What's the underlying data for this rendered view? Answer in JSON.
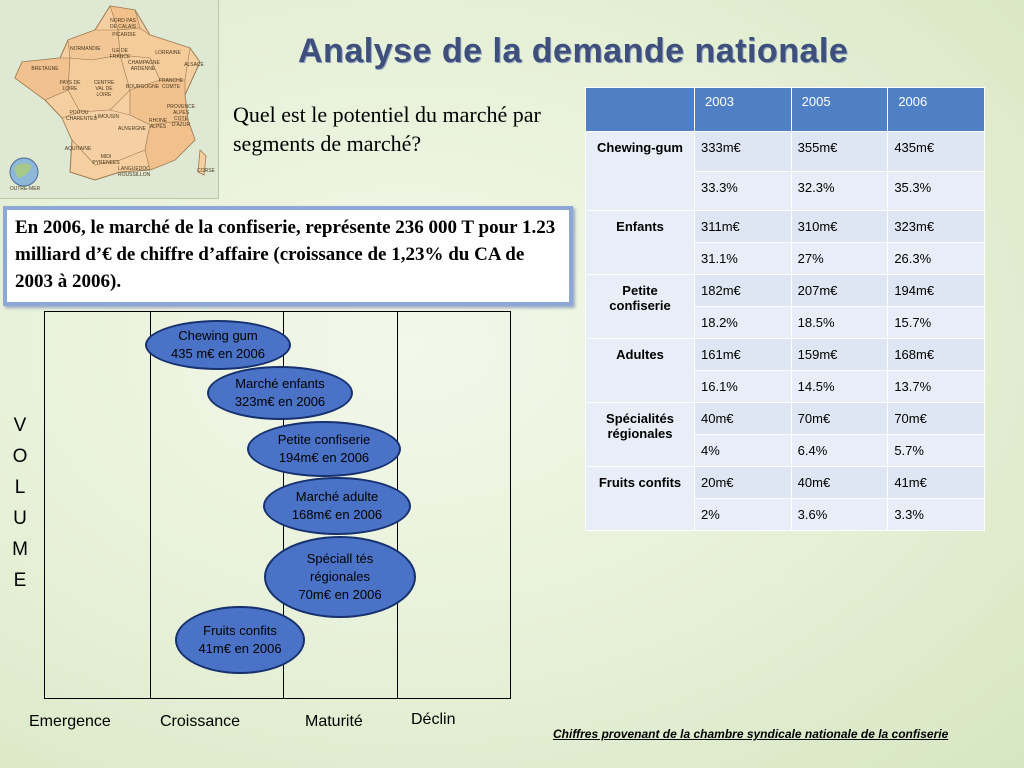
{
  "title": "Analyse de la demande nationale",
  "question": "Quel est le potentiel du marché par segments de marché?",
  "info_box": "En 2006, le marché de la confiserie, représente 236 000 T pour  1.23 milliard d’€ de chiffre d’affaire (croissance de 1,23% du CA de 2003 à 2006).",
  "map": {
    "regions": [
      "NORD PAS DE CALAIS",
      "PICARDIE",
      "NORMANDIE",
      "ILE DE FRANCE",
      "LORRAINE",
      "BRETAGNE",
      "CHAMPAGNE ARDENNE",
      "ALSACE",
      "PAYS DE LOIRE",
      "CENTRE VAL DE LOIRE",
      "BOURGOGNE",
      "FRANCHE COMTE",
      "POITOU CHARENTES",
      "LIMOUSIN",
      "AUVERGNE",
      "RHONE ALPES",
      "AQUITAINE",
      "MIDI PYRENEES",
      "LANGUEDOC ROUSSILLON",
      "PROVENCE ALPES COTE D'AZUR",
      "CORSE",
      "OUTRE-MER"
    ]
  },
  "volume_letters": [
    "V",
    "O",
    "L",
    "U",
    "M",
    "E"
  ],
  "phases": [
    "Emergence",
    "Croissance",
    "Maturité",
    "Déclin"
  ],
  "bubbles": [
    {
      "text": "Chewing gum\n435 m€ en 2006"
    },
    {
      "text": "Marché enfants\n323m€ en 2006"
    },
    {
      "text": "Petite confiserie\n194m€ en 2006"
    },
    {
      "text": "Marché adulte\n168m€ en 2006"
    },
    {
      "text": "Spéciall tés\nrégionales\n70m€ en 2006"
    },
    {
      "text": "Fruits confits\n41m€ en 2006"
    }
  ],
  "table": {
    "headers": [
      "",
      "2003",
      "2005",
      "2006"
    ],
    "rows": [
      {
        "category": "Chewing-gum",
        "values": [
          "333m€",
          "355m€",
          "435m€"
        ],
        "shares": [
          "33.3%",
          "32.3%",
          "35.3%"
        ]
      },
      {
        "category": "Enfants",
        "values": [
          "311m€",
          "310m€",
          "323m€"
        ],
        "shares": [
          "31.1%",
          "27%",
          "26.3%"
        ]
      },
      {
        "category": "Petite confiserie",
        "values": [
          "182m€",
          "207m€",
          "194m€"
        ],
        "shares": [
          "18.2%",
          "18.5%",
          "15.7%"
        ]
      },
      {
        "category": "Adultes",
        "values": [
          "161m€",
          "159m€",
          "168m€"
        ],
        "shares": [
          "16.1%",
          "14.5%",
          "13.7%"
        ]
      },
      {
        "category": "Spécialités régionales",
        "values": [
          "40m€",
          "70m€",
          "70m€"
        ],
        "shares": [
          "4%",
          "6.4%",
          "5.7%"
        ]
      },
      {
        "category": "Fruits confits",
        "values": [
          "20m€",
          "40m€",
          "41m€"
        ],
        "shares": [
          "2%",
          "3.6%",
          "3.3%"
        ]
      }
    ]
  },
  "source": "Chiffres provenant de la chambre syndicale nationale de la confiserie",
  "colors": {
    "title": "#3d4f7a",
    "bubble": "#4a73c7",
    "table_header": "#4f7fc4",
    "table_cell": "#e8eef8"
  }
}
